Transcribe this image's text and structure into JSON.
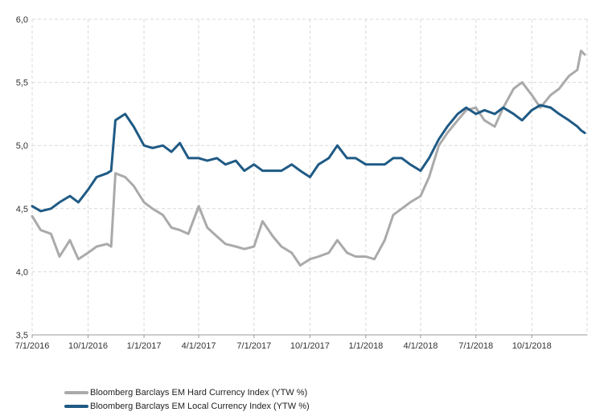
{
  "chart_data": {
    "type": "line",
    "title": "",
    "xlabel": "",
    "ylabel": "",
    "ylim": [
      3.5,
      6.0
    ],
    "yticks": [
      "3,5",
      "4,0",
      "4,5",
      "5,0",
      "5,5",
      "6,0"
    ],
    "xticks": [
      "7/1/2016",
      "10/1/2016",
      "1/1/2017",
      "4/1/2017",
      "7/1/2017",
      "10/1/2017",
      "1/1/2018",
      "4/1/2018",
      "7/1/2018",
      "10/1/2018"
    ],
    "grid": "vertical and horizontal",
    "legend_position": "bottom-left",
    "series": [
      {
        "name": "Bloomberg Barclays EM Hard Currency Index (YTW %)",
        "color": "#aaaaaa",
        "x": [
          "2016-07-01",
          "2016-07-15",
          "2016-08-01",
          "2016-08-15",
          "2016-09-01",
          "2016-09-15",
          "2016-10-01",
          "2016-10-15",
          "2016-11-01",
          "2016-11-08",
          "2016-11-15",
          "2016-12-01",
          "2016-12-15",
          "2017-01-01",
          "2017-01-15",
          "2017-02-01",
          "2017-02-15",
          "2017-03-01",
          "2017-03-15",
          "2017-04-01",
          "2017-04-15",
          "2017-05-01",
          "2017-05-15",
          "2017-06-01",
          "2017-06-15",
          "2017-07-01",
          "2017-07-15",
          "2017-08-01",
          "2017-08-15",
          "2017-09-01",
          "2017-09-15",
          "2017-10-01",
          "2017-10-15",
          "2017-11-01",
          "2017-11-15",
          "2017-12-01",
          "2017-12-15",
          "2018-01-01",
          "2018-01-15",
          "2018-02-01",
          "2018-02-15",
          "2018-03-01",
          "2018-03-15",
          "2018-04-01",
          "2018-04-15",
          "2018-05-01",
          "2018-05-15",
          "2018-06-01",
          "2018-06-15",
          "2018-07-01",
          "2018-07-15",
          "2018-08-01",
          "2018-08-15",
          "2018-09-01",
          "2018-09-15",
          "2018-10-01",
          "2018-10-15",
          "2018-11-01",
          "2018-11-15",
          "2018-12-01",
          "2018-12-15",
          "2018-12-21",
          "2018-12-27"
        ],
        "y": [
          4.44,
          4.33,
          4.3,
          4.12,
          4.25,
          4.1,
          4.15,
          4.2,
          4.22,
          4.2,
          4.78,
          4.75,
          4.68,
          4.55,
          4.5,
          4.45,
          4.35,
          4.33,
          4.3,
          4.52,
          4.35,
          4.28,
          4.22,
          4.2,
          4.18,
          4.2,
          4.4,
          4.28,
          4.2,
          4.15,
          4.05,
          4.1,
          4.12,
          4.15,
          4.25,
          4.15,
          4.12,
          4.12,
          4.1,
          4.25,
          4.45,
          4.5,
          4.55,
          4.6,
          4.75,
          5.0,
          5.1,
          5.2,
          5.28,
          5.3,
          5.2,
          5.15,
          5.3,
          5.45,
          5.5,
          5.4,
          5.3,
          5.4,
          5.45,
          5.55,
          5.6,
          5.75,
          5.72
        ]
      },
      {
        "name": "Bloomberg Barclays EM Local Currency Index (YTW %)",
        "color": "#1f5a85",
        "x": [
          "2016-07-01",
          "2016-07-15",
          "2016-08-01",
          "2016-08-15",
          "2016-09-01",
          "2016-09-15",
          "2016-10-01",
          "2016-10-15",
          "2016-11-01",
          "2016-11-08",
          "2016-11-15",
          "2016-12-01",
          "2016-12-15",
          "2017-01-01",
          "2017-01-15",
          "2017-02-01",
          "2017-02-15",
          "2017-03-01",
          "2017-03-15",
          "2017-04-01",
          "2017-04-15",
          "2017-05-01",
          "2017-05-15",
          "2017-06-01",
          "2017-06-15",
          "2017-07-01",
          "2017-07-15",
          "2017-08-01",
          "2017-08-15",
          "2017-09-01",
          "2017-09-15",
          "2017-10-01",
          "2017-10-15",
          "2017-11-01",
          "2017-11-15",
          "2017-12-01",
          "2017-12-15",
          "2018-01-01",
          "2018-01-15",
          "2018-02-01",
          "2018-02-15",
          "2018-03-01",
          "2018-03-15",
          "2018-04-01",
          "2018-04-15",
          "2018-05-01",
          "2018-05-15",
          "2018-06-01",
          "2018-06-15",
          "2018-07-01",
          "2018-07-15",
          "2018-08-01",
          "2018-08-15",
          "2018-09-01",
          "2018-09-15",
          "2018-10-01",
          "2018-10-15",
          "2018-11-01",
          "2018-11-15",
          "2018-12-01",
          "2018-12-15",
          "2018-12-21",
          "2018-12-27"
        ],
        "y": [
          4.52,
          4.48,
          4.5,
          4.55,
          4.6,
          4.55,
          4.65,
          4.75,
          4.78,
          4.8,
          5.2,
          5.25,
          5.15,
          5.0,
          4.98,
          5.0,
          4.95,
          5.02,
          4.9,
          4.9,
          4.88,
          4.9,
          4.85,
          4.88,
          4.8,
          4.85,
          4.8,
          4.8,
          4.8,
          4.85,
          4.8,
          4.75,
          4.85,
          4.9,
          5.0,
          4.9,
          4.9,
          4.85,
          4.85,
          4.85,
          4.9,
          4.9,
          4.85,
          4.8,
          4.9,
          5.05,
          5.15,
          5.25,
          5.3,
          5.25,
          5.28,
          5.25,
          5.3,
          5.25,
          5.2,
          5.28,
          5.32,
          5.3,
          5.25,
          5.2,
          5.15,
          5.12,
          5.1
        ]
      }
    ]
  }
}
